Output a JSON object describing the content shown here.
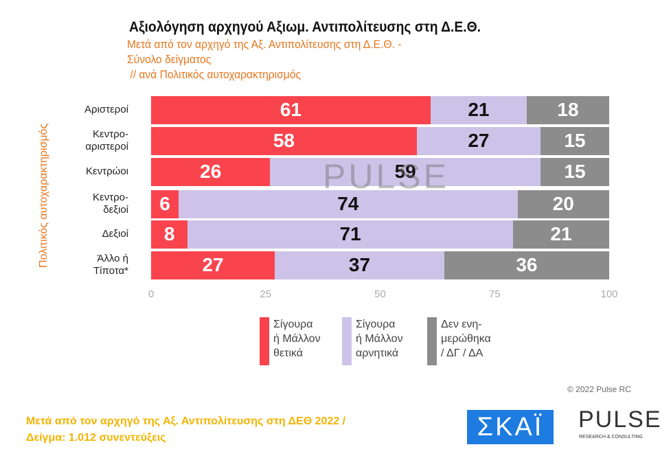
{
  "chart_data": {
    "type": "bar",
    "orientation": "horizontal",
    "stacked": true,
    "title": "Αξιολόγηση αρχηγού Αξιωμ. Αντιπολίτευσης στη Δ.Ε.Θ.",
    "subtitle": [
      "Μετά από τον αρχηγό της Αξ. Αντιπολίτευσης στη Δ.Ε.Θ. -",
      "Σύνολο δείγματος",
      " // ανά Πολιτικός αυτοχαρακτηρισμός"
    ],
    "ylabel": "Πολιτικός αυτοχαρακτηρισμός",
    "categories": [
      "Αριστεροί",
      "Κεντρο-\nαριστεροί",
      "Κεντρώοι",
      "Κεντρο-\nδεξιοί",
      "Δεξιοί",
      "Άλλο ή\nΤίποτα*"
    ],
    "xlim": [
      0,
      100
    ],
    "xticks": [
      "0",
      "25",
      "50",
      "75",
      "100"
    ],
    "legend_position": "bottom",
    "series": [
      {
        "name": "Σίγουρα\nή Μάλλον\nθετικά",
        "color": "#f9444e",
        "label_color": "#ffffff",
        "values": [
          61,
          58,
          26,
          6,
          8,
          27
        ]
      },
      {
        "name": "Σίγουρα\nή Μάλλον\nαρνητικά",
        "color": "#cdc3e8",
        "label_color": "#111111",
        "values": [
          21,
          27,
          59,
          74,
          71,
          37
        ]
      },
      {
        "name": "Δεν ενη-\nμερώθηκα\n/ ΔΓ / ΔΑ",
        "color": "#8c8c8c",
        "label_color": "#ffffff",
        "values": [
          18,
          15,
          15,
          20,
          21,
          36
        ]
      }
    ]
  },
  "watermark": "PULSE",
  "footer": "Μετά από τον αρχηγό της Αξ. Αντιπολίτευσης στη ΔΕΘ  2022  /\nΔείγμα:  1.012 συνεντεύξεις",
  "copyright": "© 2022 Pulse RC",
  "logos": {
    "skai": "ΣΚΑΪ",
    "pulse": "PULSE",
    "pulse_sub": "RESEARCH & CONSULTING"
  }
}
